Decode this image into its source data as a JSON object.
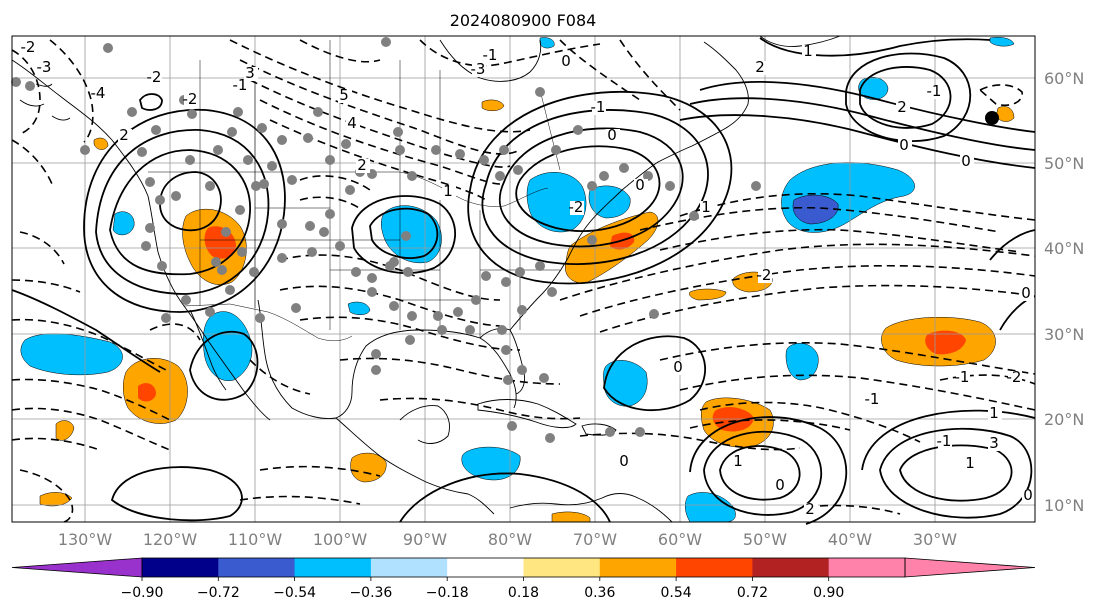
{
  "title": "2024080900 F084",
  "map": {
    "longitude_labels": [
      "130°W",
      "120°W",
      "110°W",
      "100°W",
      "90°W",
      "80°W",
      "70°W",
      "60°W",
      "50°W",
      "40°W",
      "30°W"
    ],
    "latitude_labels": [
      "60°N",
      "50°N",
      "40°N",
      "30°N",
      "20°N",
      "10°N"
    ],
    "contour_labels": [
      "-2",
      "-3",
      "-4",
      "-2",
      "-2",
      "-1",
      "2",
      "3",
      "5",
      "4",
      "2",
      "1",
      "-3",
      "-1",
      "-2",
      "0",
      "1",
      "0",
      "-1",
      "0",
      "2",
      "1",
      "2",
      "-1",
      "0",
      "0",
      "-2",
      "-1",
      "0",
      "-1",
      "1",
      "0",
      "-1",
      "0",
      "1",
      "0",
      "2",
      "3",
      "1",
      "-2",
      "0"
    ]
  },
  "colorbar": {
    "colors": [
      "#9932cc",
      "#00008b",
      "#3a5bd0",
      "#00bfff",
      "#b0e2ff",
      "#ffffff",
      "#ffe680",
      "#ffa500",
      "#ff4500",
      "#b22222",
      "#ff82ab",
      "#ff82ab"
    ],
    "under_color": "#9932cc",
    "over_color": "#ff82ab",
    "tick_labels": [
      "−0.90",
      "−0.72",
      "−0.54",
      "−0.36",
      "−0.18",
      "0.18",
      "0.36",
      "0.54",
      "0.72",
      "0.90"
    ]
  },
  "fill_colors": {
    "light_blue": "#00bfff",
    "mid_blue": "#3a5bd0",
    "orange": "#ffa500",
    "red_orange": "#ff4500",
    "contour": "#000000",
    "gridline": "#9a9a9a",
    "station_dot": "#808080"
  }
}
